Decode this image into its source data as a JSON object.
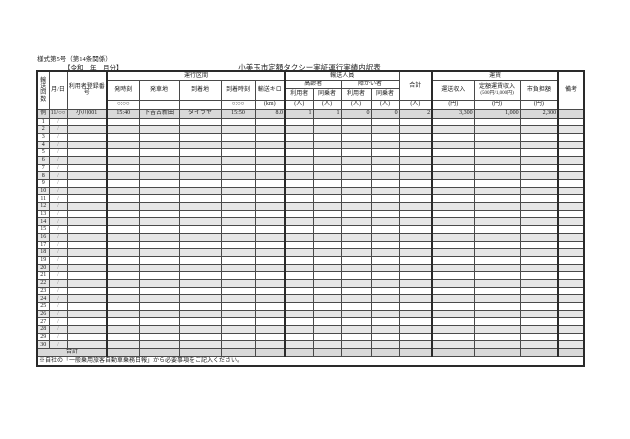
{
  "page": {
    "form_number": "様式第5号（第14条関係）",
    "period_label": "【令和　年　月分】",
    "title": "小美玉市定額タクシー実証運行実績内訳表",
    "footnote": "※自社の「一般乗用旅客自動車乗務日報」から必要事項をご記入ください。"
  },
  "table": {
    "headers": {
      "trip_count": "輸送回数",
      "date": "月/日",
      "user_reg_no": "利用者登録番号",
      "section_group": "運行区間",
      "depart_time": "発時刻",
      "depart_place": "発車地",
      "arrive_place": "到着地",
      "arrive_time": "到着時刻",
      "distance": "輸送キロ",
      "time_format": "○:○○",
      "km_unit": "(km)",
      "passengers_group": "輸送人員",
      "elderly_group": "高齢者",
      "disabled_group": "障がい者",
      "user": "利用者",
      "companion": "同乗者",
      "person_unit": "(人)",
      "total": "合計",
      "fare_group": "運賃",
      "fare_income": "運送収入",
      "flat_fare_income": "定額運賃収入",
      "flat_fare_note": "(500円/1,000円)",
      "city_burden": "市負担額",
      "yen_unit": "(円)",
      "remarks": "備考"
    },
    "example_row": {
      "no": "例",
      "cells": [
        "11/○○",
        "小川001",
        "15:40",
        "下吉古新田",
        "タイラヤ",
        "15:50",
        "8.0",
        "1",
        "1",
        "0",
        "0",
        "2",
        "3,300",
        "1,000",
        "2,300",
        ""
      ]
    },
    "empty_row_numbers": [
      "1",
      "2",
      "3",
      "4",
      "5",
      "6",
      "7",
      "8",
      "9",
      "10",
      "11",
      "12",
      "13",
      "14",
      "15",
      "16",
      "17",
      "18",
      "19",
      "20",
      "21",
      "22",
      "23",
      "24",
      "25",
      "26",
      "27",
      "28",
      "29",
      "30"
    ],
    "empty_row_date": "/",
    "total_row_label": "合計"
  }
}
